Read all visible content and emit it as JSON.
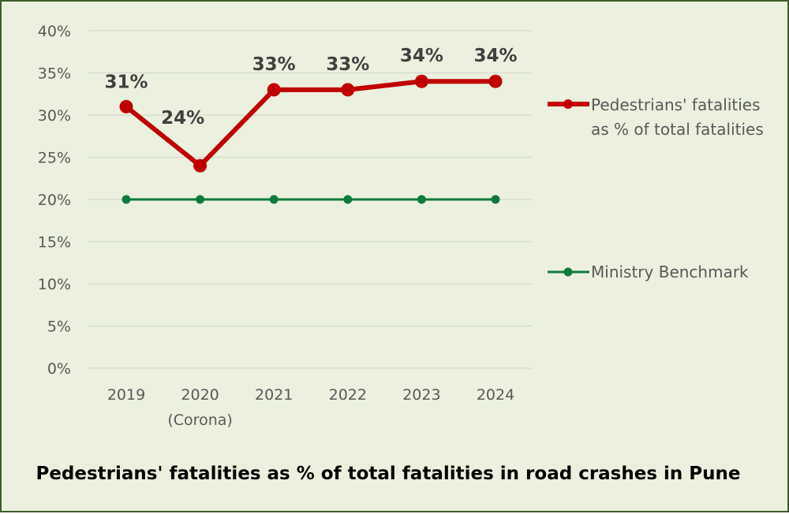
{
  "chart_data": {
    "type": "line",
    "title": "Pedestrians' fatalities as % of total fatalities in road crashes in Pune",
    "categories": [
      "2019",
      "2020",
      "2021",
      "2022",
      "2023",
      "2024"
    ],
    "category_sublabels": [
      "",
      "(Corona)",
      "",
      "",
      "",
      ""
    ],
    "ylim": [
      0,
      40
    ],
    "yticks": [
      0,
      5,
      10,
      15,
      20,
      25,
      30,
      35,
      40
    ],
    "ytick_labels": [
      "0%",
      "5%",
      "10%",
      "15%",
      "20%",
      "25%",
      "30%",
      "35%",
      "40%"
    ],
    "grid": true,
    "legend_position": "right",
    "series": [
      {
        "name": "Pedestrians' fatalities as % of total fatalities",
        "legend_lines": [
          "Pedestrians' fatalities",
          "as % of total fatalities"
        ],
        "values": [
          31,
          24,
          33,
          33,
          34,
          34
        ],
        "data_labels": [
          "31%",
          "24%",
          "33%",
          "33%",
          "34%",
          "34%"
        ],
        "color": "#c00000"
      },
      {
        "name": "Ministry Benchmark",
        "legend_lines": [
          "Ministry Benchmark"
        ],
        "values": [
          20,
          20,
          20,
          20,
          20,
          20
        ],
        "color": "#0e7a3c"
      }
    ]
  }
}
